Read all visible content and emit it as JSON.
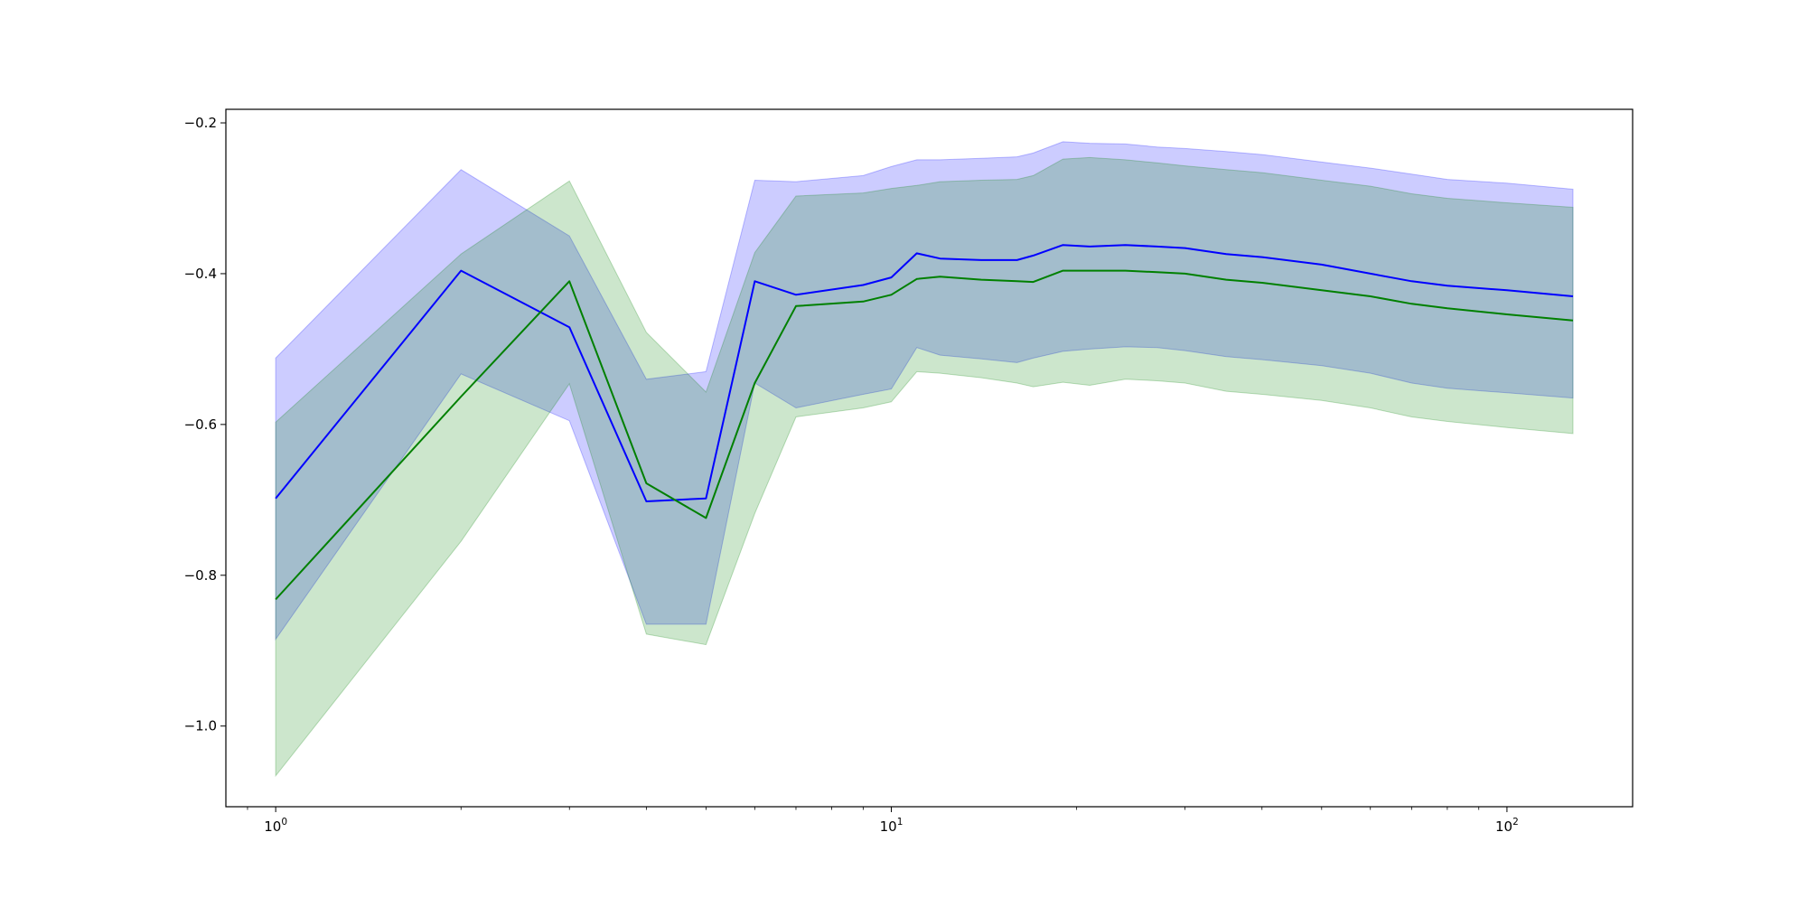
{
  "chart_data": {
    "type": "line",
    "title": "",
    "xlabel": "",
    "ylabel": "",
    "xscale": "log",
    "xlim": [
      0.83,
      160
    ],
    "ylim": [
      -1.107,
      -0.182
    ],
    "grid": false,
    "legend": "none",
    "x_ticks": [
      {
        "base": "10",
        "exp": "0",
        "value": 1
      },
      {
        "base": "10",
        "exp": "1",
        "value": 10
      },
      {
        "base": "10",
        "exp": "2",
        "value": 100
      }
    ],
    "y_ticks": [
      {
        "value": -0.2,
        "label": "−0.2"
      },
      {
        "value": -0.4,
        "label": "−0.4"
      },
      {
        "value": -0.6,
        "label": "−0.6"
      },
      {
        "value": -0.8,
        "label": "−0.8"
      },
      {
        "value": -1.0,
        "label": "−1.0"
      }
    ],
    "series": [
      {
        "color": "#0000ff",
        "band_color": "#0000ff",
        "band_opacity": 0.2,
        "points": [
          [
            1,
            -0.698,
            -0.512,
            -0.885
          ],
          [
            2,
            -0.396,
            -0.262,
            -0.533
          ],
          [
            3,
            -0.471,
            -0.35,
            -0.595
          ],
          [
            4,
            -0.702,
            -0.54,
            -0.865
          ],
          [
            5,
            -0.698,
            -0.53,
            -0.865
          ],
          [
            6,
            -0.41,
            -0.276,
            -0.545
          ],
          [
            7,
            -0.428,
            -0.278,
            -0.578
          ],
          [
            9,
            -0.415,
            -0.27,
            -0.56
          ],
          [
            10,
            -0.405,
            -0.258,
            -0.553
          ],
          [
            11,
            -0.373,
            -0.249,
            -0.498
          ],
          [
            12,
            -0.38,
            -0.249,
            -0.508
          ],
          [
            14,
            -0.382,
            -0.247,
            -0.513
          ],
          [
            16,
            -0.382,
            -0.245,
            -0.518
          ],
          [
            17,
            -0.376,
            -0.24,
            -0.512
          ],
          [
            19,
            -0.362,
            -0.225,
            -0.503
          ],
          [
            21,
            -0.364,
            -0.227,
            -0.5
          ],
          [
            24,
            -0.362,
            -0.228,
            -0.497
          ],
          [
            27,
            -0.364,
            -0.232,
            -0.498
          ],
          [
            30,
            -0.366,
            -0.234,
            -0.502
          ],
          [
            35,
            -0.374,
            -0.238,
            -0.51
          ],
          [
            40,
            -0.378,
            -0.242,
            -0.514
          ],
          [
            50,
            -0.388,
            -0.252,
            -0.522
          ],
          [
            60,
            -0.4,
            -0.26,
            -0.532
          ],
          [
            70,
            -0.41,
            -0.268,
            -0.545
          ],
          [
            80,
            -0.416,
            -0.275,
            -0.552
          ],
          [
            100,
            -0.422,
            -0.28,
            -0.558
          ],
          [
            128,
            -0.43,
            -0.288,
            -0.565
          ]
        ]
      },
      {
        "color": "#008000",
        "band_color": "#008000",
        "band_opacity": 0.2,
        "points": [
          [
            1,
            -0.832,
            -0.597,
            -1.066
          ],
          [
            2,
            -0.563,
            -0.374,
            -0.755
          ],
          [
            3,
            -0.41,
            -0.277,
            -0.546
          ],
          [
            4,
            -0.678,
            -0.478,
            -0.878
          ],
          [
            5,
            -0.724,
            -0.557,
            -0.892
          ],
          [
            6,
            -0.545,
            -0.372,
            -0.718
          ],
          [
            7,
            -0.443,
            -0.297,
            -0.59
          ],
          [
            9,
            -0.437,
            -0.293,
            -0.578
          ],
          [
            10,
            -0.428,
            -0.287,
            -0.57
          ],
          [
            11,
            -0.407,
            -0.283,
            -0.53
          ],
          [
            12,
            -0.404,
            -0.278,
            -0.532
          ],
          [
            14,
            -0.408,
            -0.276,
            -0.538
          ],
          [
            16,
            -0.41,
            -0.275,
            -0.545
          ],
          [
            17,
            -0.411,
            -0.27,
            -0.55
          ],
          [
            19,
            -0.396,
            -0.248,
            -0.544
          ],
          [
            21,
            -0.396,
            -0.246,
            -0.548
          ],
          [
            24,
            -0.396,
            -0.249,
            -0.54
          ],
          [
            27,
            -0.398,
            -0.253,
            -0.542
          ],
          [
            30,
            -0.4,
            -0.257,
            -0.545
          ],
          [
            35,
            -0.408,
            -0.262,
            -0.556
          ],
          [
            40,
            -0.412,
            -0.266,
            -0.56
          ],
          [
            50,
            -0.422,
            -0.276,
            -0.568
          ],
          [
            60,
            -0.43,
            -0.284,
            -0.578
          ],
          [
            70,
            -0.44,
            -0.294,
            -0.59
          ],
          [
            80,
            -0.446,
            -0.3,
            -0.596
          ],
          [
            100,
            -0.454,
            -0.306,
            -0.604
          ],
          [
            128,
            -0.462,
            -0.312,
            -0.612
          ]
        ]
      }
    ]
  }
}
